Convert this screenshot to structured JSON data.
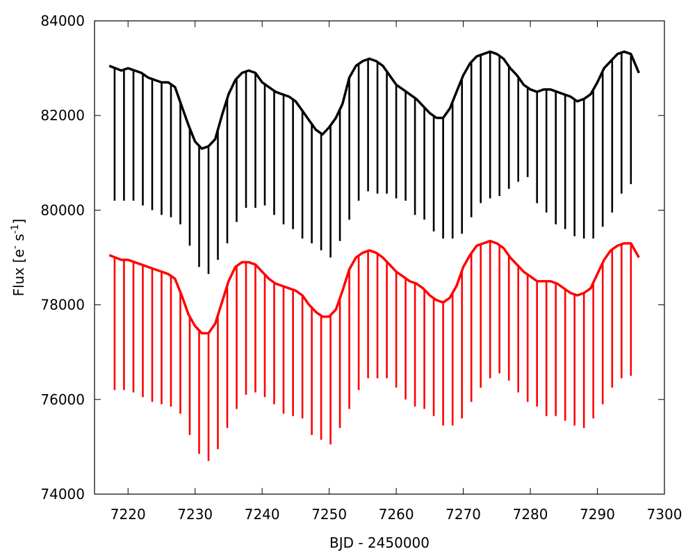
{
  "chart_data": {
    "type": "line",
    "xlabel": "BJD - 2450000",
    "ylabel": {
      "base": "Flux [e",
      "sup1": "-",
      "mid": " s",
      "sup2": "-1",
      "end": "]"
    },
    "xlim": [
      7215,
      7300
    ],
    "ylim": [
      74000,
      84000
    ],
    "xticks": [
      7220,
      7230,
      7240,
      7250,
      7260,
      7270,
      7280,
      7290,
      7300
    ],
    "yticks": [
      74000,
      76000,
      78000,
      80000,
      82000,
      84000
    ],
    "xtick_labels": [
      "7220",
      "7230",
      "7240",
      "7250",
      "7260",
      "7270",
      "7280",
      "7290",
      "7300"
    ],
    "ytick_labels": [
      "74000",
      "76000",
      "78000",
      "80000",
      "82000",
      "84000"
    ],
    "grid": false,
    "legend": "none",
    "colors": {
      "upper": "#000000",
      "lower": "#ff0000"
    },
    "series": [
      {
        "color": "#000000",
        "baseline": {
          "x": [
            7217.2,
            7219,
            7220,
            7221,
            7222,
            7223,
            7224,
            7225,
            7226,
            7227,
            7228,
            7229,
            7230,
            7231,
            7232,
            7233,
            7234,
            7235,
            7236,
            7237,
            7238,
            7239,
            7240,
            7241,
            7242,
            7243,
            7244,
            7245,
            7246,
            7247,
            7248,
            7249,
            7250,
            7251,
            7252,
            7253,
            7254,
            7255,
            7256,
            7257,
            7258,
            7259,
            7260,
            7261,
            7262,
            7263,
            7264,
            7265,
            7266,
            7267,
            7268,
            7269,
            7270,
            7271,
            7272,
            7273,
            7274,
            7275,
            7276,
            7277,
            7278,
            7279,
            7280,
            7281,
            7282,
            7283,
            7284,
            7285,
            7286,
            7287,
            7288,
            7289,
            7290,
            7291,
            7292,
            7293,
            7294,
            7295,
            7296.2
          ],
          "y": [
            83050,
            82950,
            83000,
            82950,
            82900,
            82800,
            82750,
            82700,
            82700,
            82600,
            82200,
            81800,
            81450,
            81300,
            81350,
            81500,
            82000,
            82450,
            82750,
            82900,
            82950,
            82900,
            82700,
            82600,
            82500,
            82450,
            82400,
            82300,
            82100,
            81900,
            81700,
            81600,
            81750,
            81950,
            82250,
            82800,
            83050,
            83150,
            83200,
            83150,
            83050,
            82850,
            82650,
            82550,
            82450,
            82350,
            82200,
            82050,
            81950,
            81950,
            82150,
            82500,
            82850,
            83100,
            83250,
            83300,
            83350,
            83300,
            83200,
            83000,
            82850,
            82650,
            82550,
            82500,
            82550,
            82550,
            82500,
            82450,
            82400,
            82300,
            82350,
            82450,
            82700,
            83000,
            83150,
            83300,
            83350,
            83300,
            82900
          ]
        },
        "dips": {
          "x": [
            7218.0,
            7219.4,
            7220.8,
            7222.2,
            7223.6,
            7225.0,
            7226.4,
            7227.8,
            7229.2,
            7230.6,
            7232.0,
            7233.4,
            7234.8,
            7236.2,
            7237.6,
            7239.0,
            7240.4,
            7241.8,
            7243.2,
            7244.6,
            7246.0,
            7247.4,
            7248.8,
            7250.2,
            7251.6,
            7253.0,
            7254.4,
            7255.8,
            7257.2,
            7258.6,
            7260.0,
            7261.4,
            7262.8,
            7264.2,
            7265.6,
            7267.0,
            7268.4,
            7269.8,
            7271.2,
            7272.6,
            7274.0,
            7275.4,
            7276.8,
            7278.2,
            7279.6,
            7281.0,
            7282.4,
            7283.8,
            7285.2,
            7286.6,
            7288.0,
            7289.4,
            7290.8,
            7292.2,
            7293.6,
            7295.0
          ],
          "y": [
            80200,
            80200,
            80200,
            80100,
            80000,
            79900,
            79850,
            79700,
            79250,
            78800,
            78650,
            78950,
            79300,
            79750,
            80050,
            80050,
            80100,
            79900,
            79700,
            79600,
            79400,
            79300,
            79150,
            79000,
            79350,
            79800,
            80200,
            80400,
            80350,
            80350,
            80250,
            80200,
            79900,
            79800,
            79550,
            79400,
            79400,
            79500,
            79850,
            80150,
            80250,
            80300,
            80450,
            80600,
            80700,
            80150,
            79950,
            79700,
            79600,
            79450,
            79400,
            79400,
            79650,
            79950,
            80350,
            80550
          ]
        }
      },
      {
        "color": "#ff0000",
        "baseline": {
          "x": [
            7217.2,
            7219,
            7220,
            7221,
            7222,
            7223,
            7224,
            7225,
            7226,
            7227,
            7228,
            7229,
            7230,
            7231,
            7232,
            7233,
            7234,
            7235,
            7236,
            7237,
            7238,
            7239,
            7240,
            7241,
            7242,
            7243,
            7244,
            7245,
            7246,
            7247,
            7248,
            7249,
            7250,
            7251,
            7252,
            7253,
            7254,
            7255,
            7256,
            7257,
            7258,
            7259,
            7260,
            7261,
            7262,
            7263,
            7264,
            7265,
            7266,
            7267,
            7268,
            7269,
            7270,
            7271,
            7272,
            7273,
            7274,
            7275,
            7276,
            7277,
            7278,
            7279,
            7280,
            7281,
            7282,
            7283,
            7284,
            7285,
            7286,
            7287,
            7288,
            7289,
            7290,
            7291,
            7292,
            7293,
            7294,
            7295,
            7296.2
          ],
          "y": [
            79050,
            78950,
            78950,
            78900,
            78850,
            78800,
            78750,
            78700,
            78650,
            78550,
            78200,
            77800,
            77550,
            77400,
            77400,
            77600,
            78050,
            78500,
            78800,
            78900,
            78900,
            78850,
            78700,
            78550,
            78450,
            78400,
            78350,
            78300,
            78200,
            78000,
            77850,
            77750,
            77750,
            77900,
            78300,
            78750,
            79000,
            79100,
            79150,
            79100,
            79000,
            78850,
            78700,
            78600,
            78500,
            78450,
            78350,
            78200,
            78100,
            78050,
            78150,
            78400,
            78800,
            79050,
            79250,
            79300,
            79350,
            79300,
            79200,
            79000,
            78850,
            78700,
            78600,
            78500,
            78500,
            78500,
            78450,
            78350,
            78250,
            78200,
            78250,
            78350,
            78650,
            78950,
            79150,
            79250,
            79300,
            79300,
            79000
          ]
        },
        "dips": {
          "x": [
            7218.0,
            7219.4,
            7220.8,
            7222.2,
            7223.6,
            7225.0,
            7226.4,
            7227.8,
            7229.2,
            7230.6,
            7232.0,
            7233.4,
            7234.8,
            7236.2,
            7237.6,
            7239.0,
            7240.4,
            7241.8,
            7243.2,
            7244.6,
            7246.0,
            7247.4,
            7248.8,
            7250.2,
            7251.6,
            7253.0,
            7254.4,
            7255.8,
            7257.2,
            7258.6,
            7260.0,
            7261.4,
            7262.8,
            7264.2,
            7265.6,
            7267.0,
            7268.4,
            7269.8,
            7271.2,
            7272.6,
            7274.0,
            7275.4,
            7276.8,
            7278.2,
            7279.6,
            7281.0,
            7282.4,
            7283.8,
            7285.2,
            7286.6,
            7288.0,
            7289.4,
            7290.8,
            7292.2,
            7293.6,
            7295.0
          ],
          "y": [
            76200,
            76200,
            76150,
            76050,
            75950,
            75900,
            75850,
            75700,
            75250,
            74850,
            74700,
            74950,
            75400,
            75800,
            76100,
            76150,
            76050,
            75900,
            75700,
            75650,
            75600,
            75250,
            75150,
            75050,
            75400,
            75800,
            76200,
            76450,
            76450,
            76450,
            76250,
            76000,
            75850,
            75800,
            75650,
            75450,
            75450,
            75600,
            75950,
            76250,
            76450,
            76550,
            76400,
            76150,
            75950,
            75850,
            75650,
            75650,
            75550,
            75450,
            75400,
            75600,
            75900,
            76250,
            76450,
            76500
          ]
        }
      }
    ]
  }
}
